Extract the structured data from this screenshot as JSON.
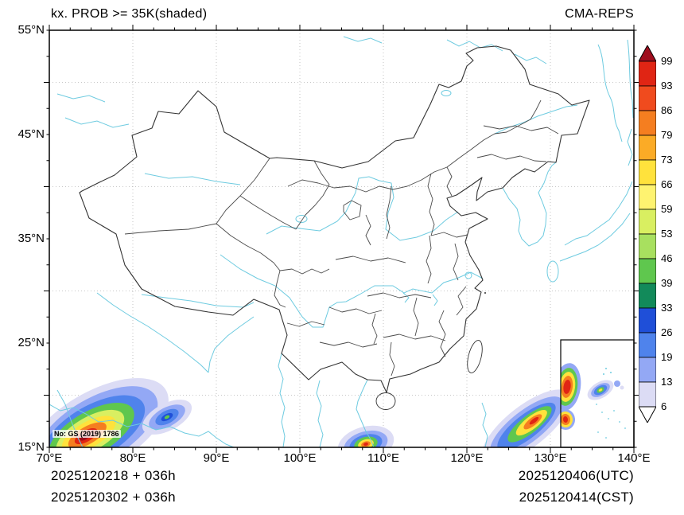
{
  "header": {
    "title": "kx. PROB >= 35K(shaded)",
    "model": "CMA-REPS"
  },
  "axes": {
    "lat_labels": [
      "55°N",
      "45°N",
      "35°N",
      "25°N",
      "15°N"
    ],
    "lon_labels": [
      "70°E",
      "80°E",
      "90°E",
      "100°E",
      "110°E",
      "120°E",
      "130°E",
      "140°E"
    ]
  },
  "colorbar": {
    "labels": [
      "99",
      "93",
      "86",
      "79",
      "73",
      "66",
      "59",
      "53",
      "46",
      "39",
      "33",
      "26",
      "19",
      "13",
      "6"
    ],
    "top_color": "#9f0e1e",
    "bottom_color": "#ffffff",
    "band_colors": [
      "#e02514",
      "#f04b1e",
      "#f57e20",
      "#fbab26",
      "#ffe23c",
      "#fef370",
      "#d9ef61",
      "#a8e05f",
      "#5fc74e",
      "#128a5a",
      "#1f4fd8",
      "#4f83ec",
      "#93a8f5",
      "#dcdcf5"
    ]
  },
  "map": {
    "license": "No: GS (2019) 1786"
  },
  "footer": {
    "init_utc": "2025120218 + 036h",
    "init_cst": "2025120302 + 036h",
    "valid_utc": "2025120406(UTC)",
    "valid_cst": "2025120414(CST)"
  }
}
